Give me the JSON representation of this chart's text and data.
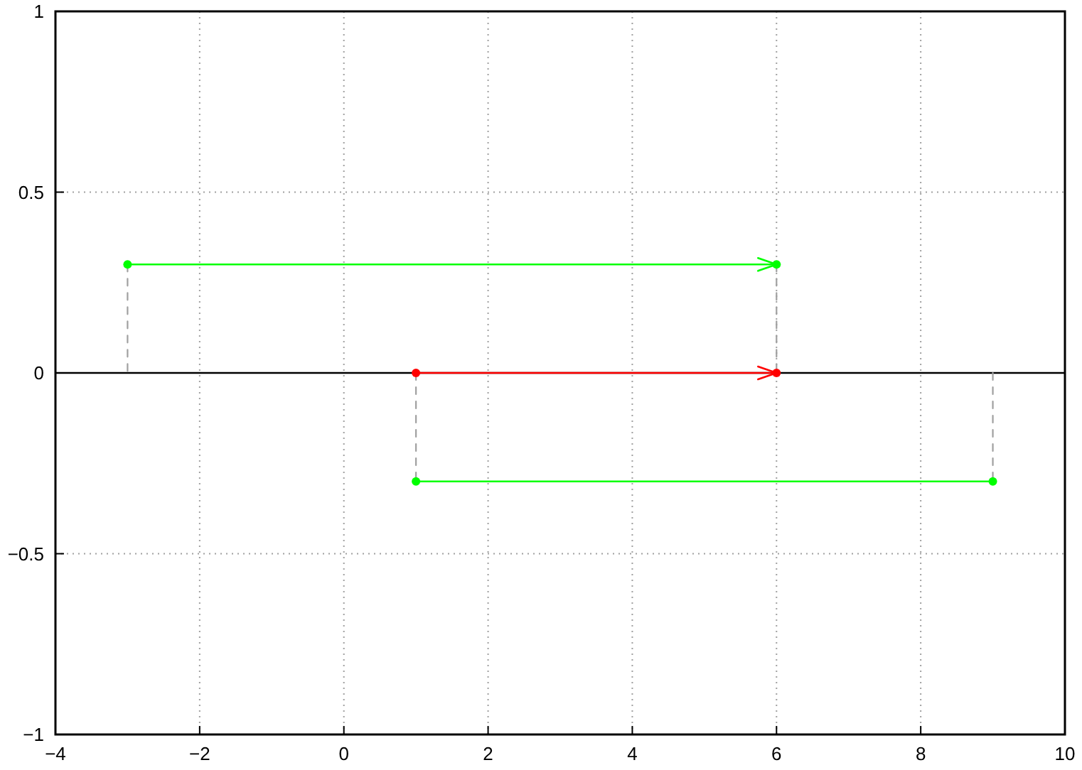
{
  "chart_data": {
    "type": "line",
    "xlim": [
      -4,
      10
    ],
    "xticks": [
      {
        "value": -4,
        "label": "−4"
      },
      {
        "value": -2,
        "label": "−2"
      },
      0,
      2,
      4,
      6,
      8,
      10
    ],
    "ylim": [
      -1,
      1
    ],
    "yticks": [
      {
        "value": -1,
        "label": "−1"
      },
      {
        "value": -0.5,
        "label": "−0.5"
      },
      0,
      0.5,
      1
    ],
    "grid": true,
    "ref_lines": [
      {
        "axis": "y",
        "value": 0,
        "color": "#000000"
      }
    ],
    "series": [
      {
        "x": [
          -3,
          -3
        ],
        "values": [
          0.3,
          0
        ],
        "color": "#a0a0a0",
        "line_style": "dashed",
        "marker": "none"
      },
      {
        "x": [
          6,
          6
        ],
        "values": [
          0.3,
          0
        ],
        "color": "#a0a0a0",
        "line_style": "dashed",
        "marker": "none"
      },
      {
        "x": [
          1,
          1
        ],
        "values": [
          0,
          -0.3
        ],
        "color": "#a0a0a0",
        "line_style": "dashed",
        "marker": "none"
      },
      {
        "x": [
          9,
          9
        ],
        "values": [
          0,
          -0.3
        ],
        "color": "#a0a0a0",
        "line_style": "dashed",
        "marker": "none"
      },
      {
        "x": [
          -3,
          6
        ],
        "values": [
          0.3,
          0.3
        ],
        "color": "#00ff00",
        "line_style": "solid",
        "marker": "circle"
      },
      {
        "x": [
          1,
          6
        ],
        "values": [
          0,
          0
        ],
        "color": "#ff0000",
        "line_style": "solid",
        "marker": "circle"
      },
      {
        "x": [
          1,
          9
        ],
        "values": [
          -0.3,
          -0.3
        ],
        "color": "#00ff00",
        "line_style": "solid",
        "marker": "circle"
      }
    ]
  }
}
